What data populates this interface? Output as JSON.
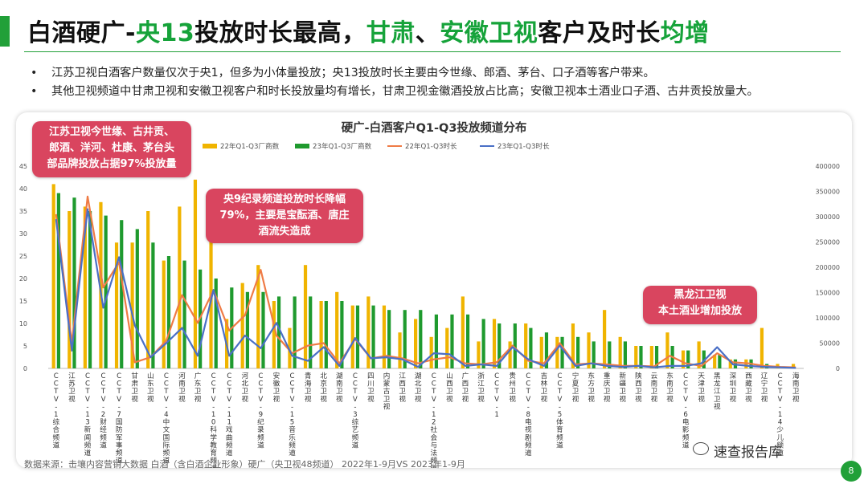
{
  "header": {
    "title_parts": [
      {
        "text": "白酒硬广-",
        "hl": false
      },
      {
        "text": "央13",
        "hl": true
      },
      {
        "text": "投放时长最高，",
        "hl": false
      },
      {
        "text": "甘肃",
        "hl": true
      },
      {
        "text": "、",
        "hl": false
      },
      {
        "text": "安徽卫视",
        "hl": true
      },
      {
        "text": "客户及时长",
        "hl": false
      },
      {
        "text": "均增",
        "hl": true
      }
    ],
    "accent_color": "#21a038"
  },
  "bullets": [
    "江苏卫视白酒客户数量仅次于央1，但多为小体量投放；央13投放时长主要由今世缘、郎酒、茅台、口子酒等客户带来。",
    "其他卫视频道中甘肃卫视和安徽卫视客户和时长投放量均有增长，甘肃卫视金徽酒投放占比高；安徽卫视本土酒业口子酒、古井贡投放量大。"
  ],
  "bullet_symbol": "•",
  "callouts": {
    "c1": [
      "江苏卫视今世缘、古井贡、",
      "郎酒、洋河、杜康、茅台头",
      "部品牌投放占据97%投放量"
    ],
    "c2": [
      "央9纪录频道投放时长降幅",
      "79%，主要是宝酝酒、唐庄",
      "酒流失造成"
    ],
    "c3": [
      "黑龙江卫视",
      "本土酒业增加投放"
    ]
  },
  "source_text": "数据来源：击壤内容营销大数据    白酒（含白酒企业形象）硬广（央卫视48频道）  2022年1-9月VS 2023年1-9月",
  "watermark": "速查报告库",
  "page_number": "8",
  "chart_data": {
    "type": "bar",
    "title": "硬广-白酒客户Q1-Q3投放频道分布",
    "categories": [
      "CCTV-1综合频道",
      "江苏卫视",
      "CCTV-13新闻频道",
      "CCTV-2财经频道",
      "CCTV-7国防军事频道",
      "甘肃卫视",
      "山东卫视",
      "CCTV-4中文国际频道",
      "河南卫视",
      "广东卫视",
      "CCTV-10科学教育频道",
      "CCTV-11戏曲频道",
      "河北卫视",
      "CCTV-9纪录频道",
      "安徽卫视",
      "CCTV-15音乐频道",
      "青海卫视",
      "北京卫视",
      "湖南卫视",
      "CCTV-3综艺频道",
      "四川卫视",
      "内蒙古卫视",
      "江西卫视",
      "湖北卫视",
      "CCTV-12社会与法频道",
      "山西卫视",
      "广西卫视",
      "浙江卫视",
      "CCTV-1",
      "贵州卫视",
      "CCTV-8电视剧频道",
      "吉林卫视",
      "CCTV-5体育频道",
      "宁夏卫视",
      "东方卫视",
      "重庆卫视",
      "新疆卫视",
      "陕西卫视",
      "云南卫视",
      "东南卫视",
      "CCTV-6电影频道",
      "天津卫视",
      "黑龙江卫视",
      "深圳卫视",
      "西藏卫视",
      "辽宁卫视",
      "CCTV-14少儿频道",
      "海南卫视"
    ],
    "series": [
      {
        "name": "22年Q1-Q3厂商数",
        "type": "bar",
        "axis": "left",
        "color": "#f0b400",
        "values": [
          41,
          35,
          36,
          37,
          28,
          28,
          35,
          24,
          36,
          42,
          31,
          11,
          19,
          23,
          15,
          9,
          23,
          15,
          17,
          14,
          16,
          14,
          8,
          11,
          7,
          9,
          16,
          6,
          11,
          6,
          10,
          7,
          7,
          10,
          8,
          13,
          7,
          5,
          5,
          8,
          4,
          6,
          3,
          2,
          2,
          9,
          1,
          1
        ]
      },
      {
        "name": "23年Q1-Q3厂商数",
        "type": "bar",
        "axis": "left",
        "color": "#1f9a2e",
        "values": [
          39,
          38,
          35,
          34,
          33,
          31,
          28,
          25,
          24,
          22,
          20,
          18,
          17,
          17,
          16,
          16,
          16,
          15,
          15,
          14,
          14,
          13,
          13,
          13,
          12,
          12,
          12,
          11,
          10,
          10,
          9,
          8,
          7,
          7,
          6,
          6,
          6,
          5,
          5,
          5,
          4,
          4,
          3,
          2,
          2,
          1,
          0,
          0
        ]
      },
      {
        "name": "22年Q1-Q3时长",
        "type": "line",
        "axis": "right",
        "color": "#ef7b45",
        "values": [
          305000,
          50000,
          340000,
          160000,
          210000,
          12000,
          22000,
          55000,
          145000,
          90000,
          155000,
          75000,
          105000,
          195000,
          65000,
          30000,
          45000,
          50000,
          10000,
          58000,
          20000,
          25000,
          20000,
          10000,
          18000,
          22000,
          10000,
          8000,
          12000,
          45000,
          15000,
          10000,
          50000,
          8000,
          10000,
          8000,
          5000,
          5000,
          4000,
          25000,
          10000,
          5000,
          30000,
          12000,
          10000,
          5000,
          3000,
          2000
        ]
      },
      {
        "name": "23年Q1-Q3时长",
        "type": "line",
        "axis": "right",
        "color": "#4a6fc6",
        "values": [
          295000,
          35000,
          315000,
          120000,
          220000,
          85000,
          22000,
          50000,
          80000,
          25000,
          155000,
          25000,
          65000,
          40000,
          90000,
          25000,
          15000,
          42000,
          5000,
          60000,
          20000,
          22000,
          18000,
          3000,
          30000,
          28000,
          5000,
          8000,
          5000,
          42000,
          18000,
          5000,
          45000,
          5000,
          10000,
          5000,
          3000,
          5000,
          2000,
          5000,
          5000,
          10000,
          42000,
          8000,
          5000,
          3000,
          2000,
          1000
        ]
      }
    ],
    "y_left": {
      "min": 0,
      "max": 45,
      "step": 5
    },
    "y_right": {
      "min": 0,
      "max": 400000,
      "step": 50000
    },
    "legend_position": "top",
    "grid": false
  }
}
